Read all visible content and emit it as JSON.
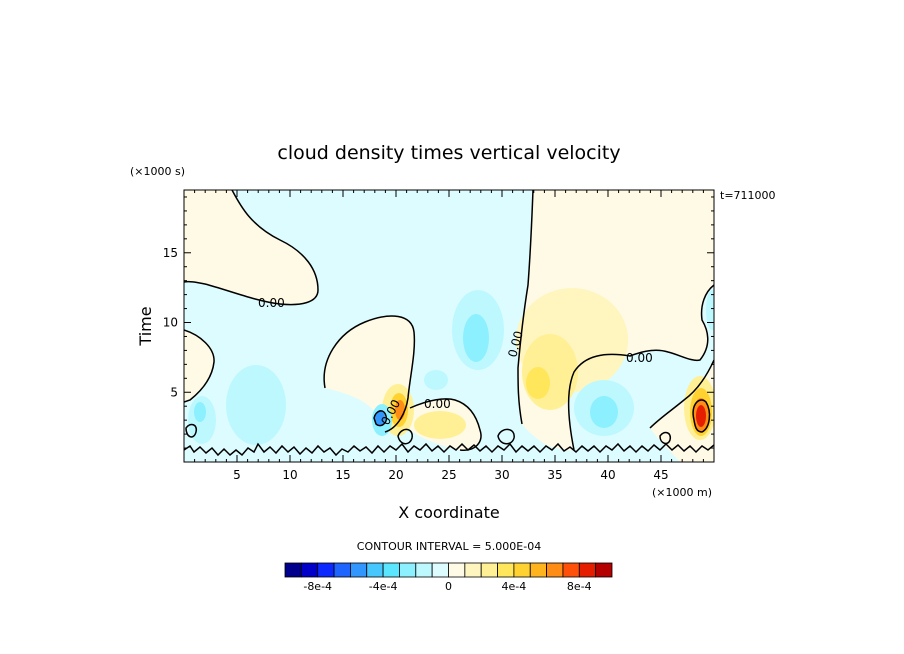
{
  "chart_data": {
    "type": "heatmap",
    "title": "cloud density times vertical velocity",
    "xlabel": "X coordinate",
    "ylabel": "Time",
    "x_unit_label": "(×1000 m)",
    "y_unit_label": "(×1000 s)",
    "time_stamp": "t=711000",
    "xlim": [
      0,
      50
    ],
    "ylim": [
      0,
      19.5
    ],
    "x_ticks": [
      5,
      10,
      15,
      20,
      25,
      30,
      35,
      40,
      45
    ],
    "y_ticks": [
      5,
      10,
      15
    ],
    "contour_interval_label": "CONTOUR INTERVAL = 5.000E-04",
    "zero_contour_label": "0.00",
    "colorbar": {
      "levels": [
        -0.001,
        -0.0009,
        -0.0008,
        -0.0007,
        -0.0006,
        -0.0005,
        -0.0004,
        -0.0003,
        -0.0002,
        -0.0001,
        0,
        0.0001,
        0.0002,
        0.0003,
        0.0004,
        0.0005,
        0.0006,
        0.0007,
        0.0008,
        0.0009,
        0.001
      ],
      "tick_labels": [
        "-8e-4",
        "-4e-4",
        "0",
        "4e-4",
        "8e-4"
      ],
      "tick_values": [
        -0.0008,
        -0.0004,
        0,
        0.0004,
        0.0008
      ],
      "colors": [
        "#00008c",
        "#0000c8",
        "#0a28ff",
        "#1e64ff",
        "#3296ff",
        "#46c8ff",
        "#5ae6ff",
        "#8cf0ff",
        "#bef8ff",
        "#dcfcff",
        "#fffae6",
        "#fff5be",
        "#fff096",
        "#ffe65a",
        "#ffd232",
        "#ffb41e",
        "#ff8c14",
        "#ff500a",
        "#e61e00",
        "#b40000"
      ]
    },
    "features": [
      {
        "x": 48.5,
        "y": 3.0,
        "value": 0.00095,
        "description": "strongest positive core"
      },
      {
        "x": 19.5,
        "y": 4.0,
        "value": 0.0007,
        "description": "positive core"
      },
      {
        "x": 18.5,
        "y": 3.5,
        "value": -0.0006,
        "description": "negative core"
      },
      {
        "x": 28.0,
        "y": 9.0,
        "value": -0.0002,
        "description": "negative region"
      },
      {
        "x": 40.0,
        "y": 4.0,
        "value": -0.0003,
        "description": "negative region"
      },
      {
        "x": 33.5,
        "y": 6.0,
        "value": 0.0003,
        "description": "positive region"
      },
      {
        "x": 7.0,
        "y": 5.0,
        "value": -0.0001,
        "description": "weak negative region"
      },
      {
        "x": 2.0,
        "y": 3.5,
        "value": -0.0002,
        "description": "weak negative region"
      }
    ]
  }
}
